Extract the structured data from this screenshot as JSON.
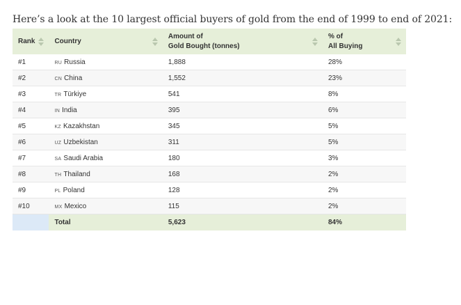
{
  "intro_text": "Here’s a look at the 10 largest official buyers of gold from the end of 1999 to end of 2021:",
  "table": {
    "headers": {
      "rank": "Rank",
      "country": "Country",
      "amount_line1": "Amount of",
      "amount_line2": "Gold Bought (tonnes)",
      "pct_line1": "% of",
      "pct_line2": "All Buying"
    },
    "rows": [
      {
        "rank": "#1",
        "code": "RU",
        "country": "Russia",
        "amount": "1,888",
        "pct": "28%"
      },
      {
        "rank": "#2",
        "code": "CN",
        "country": "China",
        "amount": "1,552",
        "pct": "23%"
      },
      {
        "rank": "#3",
        "code": "TR",
        "country": "Türkiye",
        "amount": "541",
        "pct": "8%"
      },
      {
        "rank": "#4",
        "code": "IN",
        "country": "India",
        "amount": "395",
        "pct": "6%"
      },
      {
        "rank": "#5",
        "code": "KZ",
        "country": "Kazakhstan",
        "amount": "345",
        "pct": "5%"
      },
      {
        "rank": "#6",
        "code": "UZ",
        "country": "Uzbekistan",
        "amount": "311",
        "pct": "5%"
      },
      {
        "rank": "#7",
        "code": "SA",
        "country": "Saudi Arabia",
        "amount": "180",
        "pct": "3%"
      },
      {
        "rank": "#8",
        "code": "TH",
        "country": "Thailand",
        "amount": "168",
        "pct": "2%"
      },
      {
        "rank": "#9",
        "code": "PL",
        "country": "Poland",
        "amount": "128",
        "pct": "2%"
      },
      {
        "rank": "#10",
        "code": "MX",
        "country": "Mexico",
        "amount": "115",
        "pct": "2%"
      }
    ],
    "total": {
      "label": "Total",
      "amount": "5,623",
      "pct": "84%"
    }
  },
  "colors": {
    "header_bg": "#e6efd9",
    "row_alt_bg": "#f7f7f7",
    "total_empty_cell_bg": "#dce9f7",
    "sort_icon": "#b9c7ae"
  },
  "icons": {
    "sort": "sort-up-down-icon"
  }
}
